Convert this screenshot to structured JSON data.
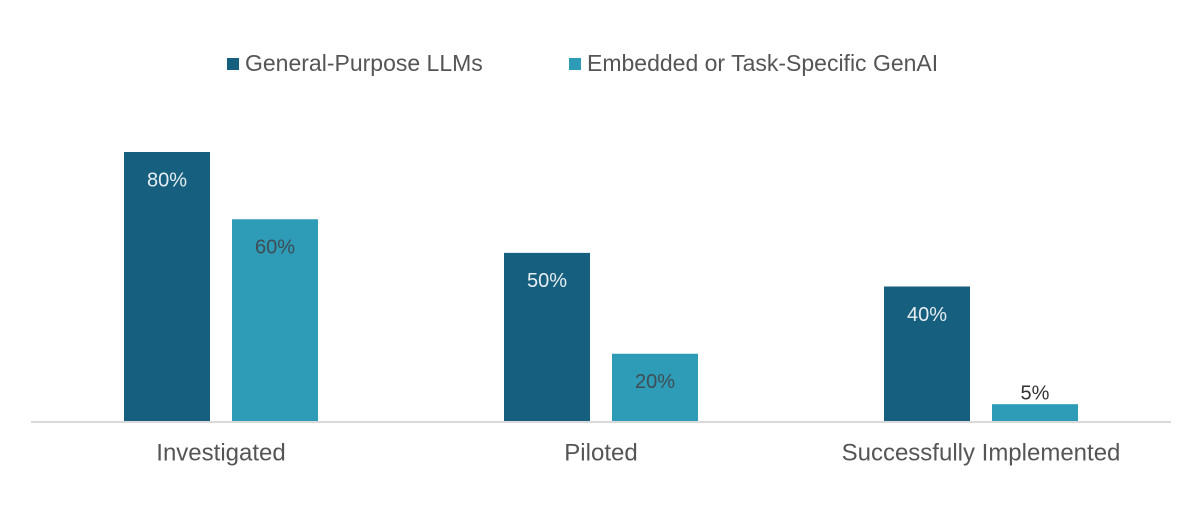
{
  "chart_data": {
    "type": "bar",
    "categories": [
      "Investigated",
      "Piloted",
      "Successfully Implemented"
    ],
    "series": [
      {
        "name": "General-Purpose LLMs",
        "color": "#175f7f",
        "values": [
          80,
          50,
          40
        ],
        "value_labels": [
          "80%",
          "50%",
          "40%"
        ]
      },
      {
        "name": "Embedded or Task-Specific GenAI",
        "color": "#2e9cb6",
        "values": [
          60,
          20,
          5
        ],
        "value_labels": [
          "60%",
          "20%",
          "5%"
        ]
      }
    ]
  }
}
